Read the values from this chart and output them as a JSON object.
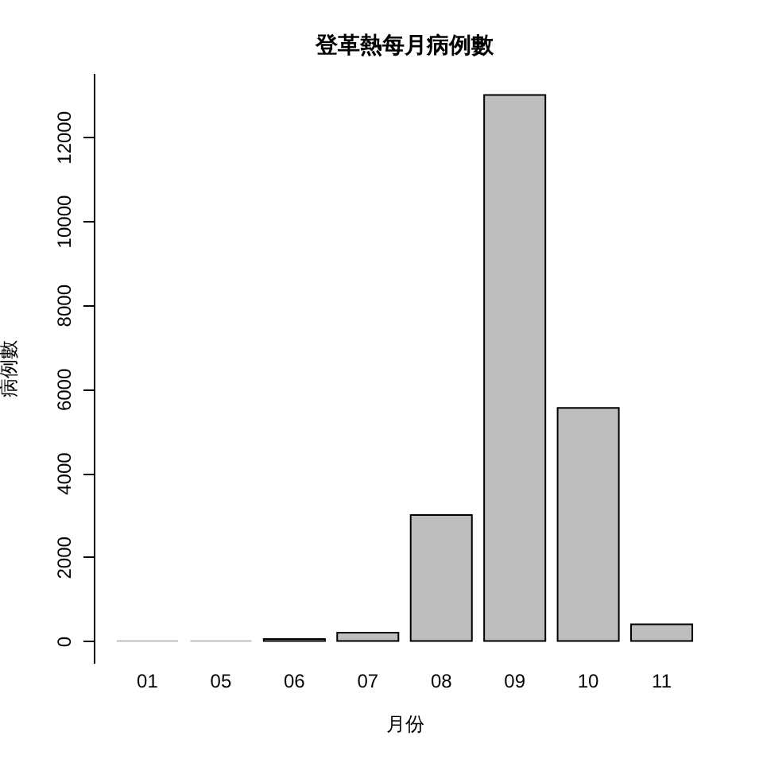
{
  "chart_data": {
    "type": "bar",
    "title": "登革熱每月病例數",
    "xlabel": "月份",
    "ylabel": "病例數",
    "categories": [
      "01",
      "05",
      "06",
      "07",
      "08",
      "09",
      "10",
      "11"
    ],
    "values": [
      0,
      0,
      50,
      200,
      3000,
      13000,
      5550,
      400
    ],
    "color": "#bebebe",
    "ylim": [
      -520,
      13520
    ],
    "yticks": [
      0,
      2000,
      4000,
      6000,
      8000,
      10000,
      12000
    ],
    "grid": false
  }
}
